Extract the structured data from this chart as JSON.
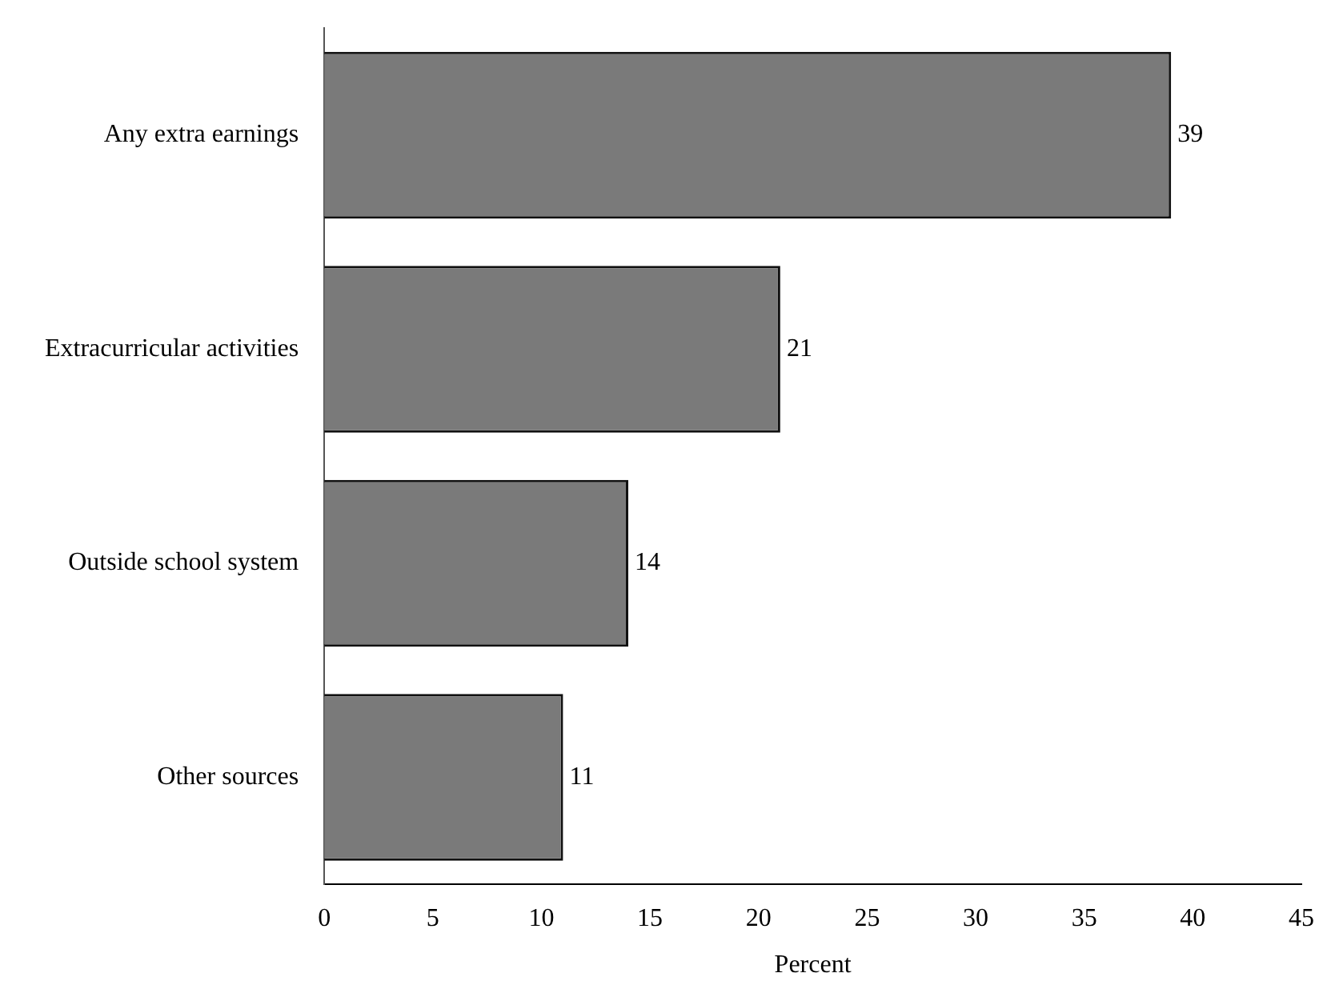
{
  "chart_data": {
    "type": "bar",
    "orientation": "horizontal",
    "categories": [
      "Any extra earnings",
      "Extracurricular activities",
      "Outside school system",
      "Other sources"
    ],
    "values": [
      39,
      21,
      14,
      11
    ],
    "color": "#7a7a7a",
    "xlim": [
      0,
      45
    ],
    "xticks": [
      0,
      5,
      10,
      15,
      20,
      25,
      30,
      35,
      40,
      45
    ],
    "xlabel": "Percent",
    "data_labels": true
  }
}
